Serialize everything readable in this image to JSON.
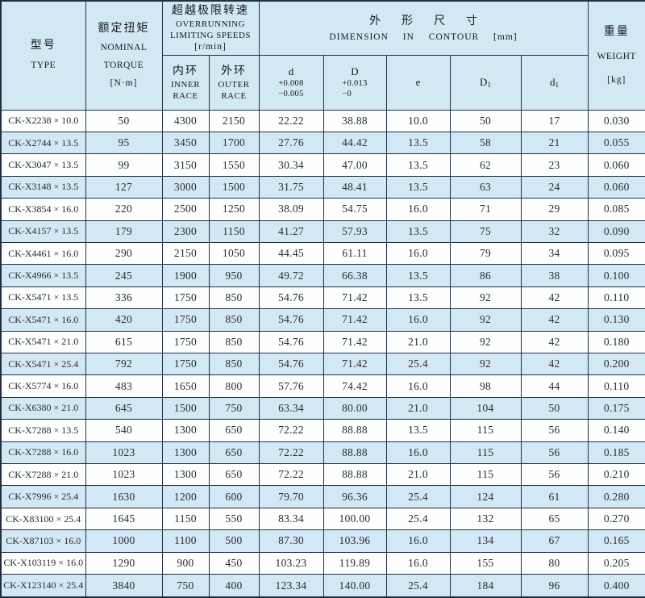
{
  "table": {
    "header": {
      "type": {
        "zh": "型号",
        "en": "TYPE"
      },
      "torque": {
        "zh": "额定扭矩",
        "en1": "NOMINAL",
        "en2": "TORQUE",
        "unit": "[N·m]"
      },
      "speeds": {
        "zh": "超越极限转速",
        "en1": "OVERRUNNING",
        "en2": "LIMITING SPEEDS",
        "unit": "[r/min]"
      },
      "inner_race": {
        "zh": "内环",
        "en1": "INNER",
        "en2": "RACE"
      },
      "outer_race": {
        "zh": "外环",
        "en1": "OUTER",
        "en2": "RACE"
      },
      "dimension": {
        "zh": "外形尺寸",
        "en": "DIMENSION IN CONTOUR [mm]"
      },
      "d": {
        "label": "d",
        "tol1": "+0.008",
        "tol2": "−0.005"
      },
      "D": {
        "label": "D",
        "tol1": "+0.013",
        "tol2": "−0"
      },
      "e": {
        "label": "e"
      },
      "D1": {
        "base": "D",
        "sub": "1"
      },
      "d1": {
        "base": "d",
        "sub": "1"
      },
      "weight": {
        "zh": "重量",
        "en": "WEIGHT",
        "unit": "[kg]"
      }
    },
    "column_keys": [
      "type",
      "torque",
      "inner-race",
      "outer-race",
      "d",
      "D",
      "e",
      "D1",
      "d1",
      "weight"
    ],
    "rows": [
      [
        "CK-X2238 × 10.0",
        "50",
        "4300",
        "2150",
        "22.22",
        "38.88",
        "10.0",
        "50",
        "17",
        "0.030"
      ],
      [
        "CK-X2744 × 13.5",
        "95",
        "3450",
        "1700",
        "27.76",
        "44.42",
        "13.5",
        "58",
        "21",
        "0.055"
      ],
      [
        "CK-X3047 × 13.5",
        "99",
        "3150",
        "1550",
        "30.34",
        "47.00",
        "13.5",
        "62",
        "23",
        "0.060"
      ],
      [
        "CK-X3148 × 13.5",
        "127",
        "3000",
        "1500",
        "31.75",
        "48.41",
        "13.5",
        "63",
        "24",
        "0.060"
      ],
      [
        "CK-X3854 × 16.0",
        "220",
        "2500",
        "1250",
        "38.09",
        "54.75",
        "16.0",
        "71",
        "29",
        "0.085"
      ],
      [
        "CK-X4157 × 13.5",
        "179",
        "2300",
        "1150",
        "41.27",
        "57.93",
        "13.5",
        "75",
        "32",
        "0.090"
      ],
      [
        "CK-X4461 × 16.0",
        "290",
        "2150",
        "1050",
        "44.45",
        "61.11",
        "16.0",
        "79",
        "34",
        "0.095"
      ],
      [
        "CK-X4966 × 13.5",
        "245",
        "1900",
        "950",
        "49.72",
        "66.38",
        "13.5",
        "86",
        "38",
        "0.100"
      ],
      [
        "CK-X5471 × 13.5",
        "336",
        "1750",
        "850",
        "54.76",
        "71.42",
        "13.5",
        "92",
        "42",
        "0.110"
      ],
      [
        "CK-X5471 × 16.0",
        "420",
        "1750",
        "850",
        "54.76",
        "71.42",
        "16.0",
        "92",
        "42",
        "0.130"
      ],
      [
        "CK-X5471 × 21.0",
        "615",
        "1750",
        "850",
        "54.76",
        "71.42",
        "21.0",
        "92",
        "42",
        "0.180"
      ],
      [
        "CK-X5471 × 25.4",
        "792",
        "1750",
        "850",
        "54.76",
        "71.42",
        "25.4",
        "92",
        "42",
        "0.200"
      ],
      [
        "CK-X5774 × 16.0",
        "483",
        "1650",
        "800",
        "57.76",
        "74.42",
        "16.0",
        "98",
        "44",
        "0.110"
      ],
      [
        "CK-X6380 × 21.0",
        "645",
        "1500",
        "750",
        "63.34",
        "80.00",
        "21.0",
        "104",
        "50",
        "0.175"
      ],
      [
        "CK-X7288 × 13.5",
        "540",
        "1300",
        "650",
        "72.22",
        "88.88",
        "13.5",
        "115",
        "56",
        "0.140"
      ],
      [
        "CK-X7288 × 16.0",
        "1023",
        "1300",
        "650",
        "72.22",
        "88.88",
        "16.0",
        "115",
        "56",
        "0.185"
      ],
      [
        "CK-X7288 × 21.0",
        "1023",
        "1300",
        "650",
        "72.22",
        "88.88",
        "21.0",
        "115",
        "56",
        "0.210"
      ],
      [
        "CK-X7996 × 25.4",
        "1630",
        "1200",
        "600",
        "79.70",
        "96.36",
        "25.4",
        "124",
        "61",
        "0.280"
      ],
      [
        "CK-X83100 × 25.4",
        "1645",
        "1150",
        "550",
        "83.34",
        "100.00",
        "25.4",
        "132",
        "65",
        "0.270"
      ],
      [
        "CK-X87103 × 16.0",
        "1000",
        "1100",
        "500",
        "87.30",
        "103.96",
        "16.0",
        "134",
        "67",
        "0.165"
      ],
      [
        "CK-X103119 × 16.0",
        "1290",
        "900",
        "450",
        "103.23",
        "119.89",
        "16.0",
        "155",
        "80",
        "0.205"
      ],
      [
        "CK-X123140 × 25.4",
        "3840",
        "750",
        "400",
        "123.34",
        "140.00",
        "25.4",
        "184",
        "96",
        "0.400"
      ]
    ]
  },
  "colors": {
    "stripe_blue": "#d3e8f5",
    "stripe_white": "#fdfefe",
    "border": "#222f42"
  }
}
